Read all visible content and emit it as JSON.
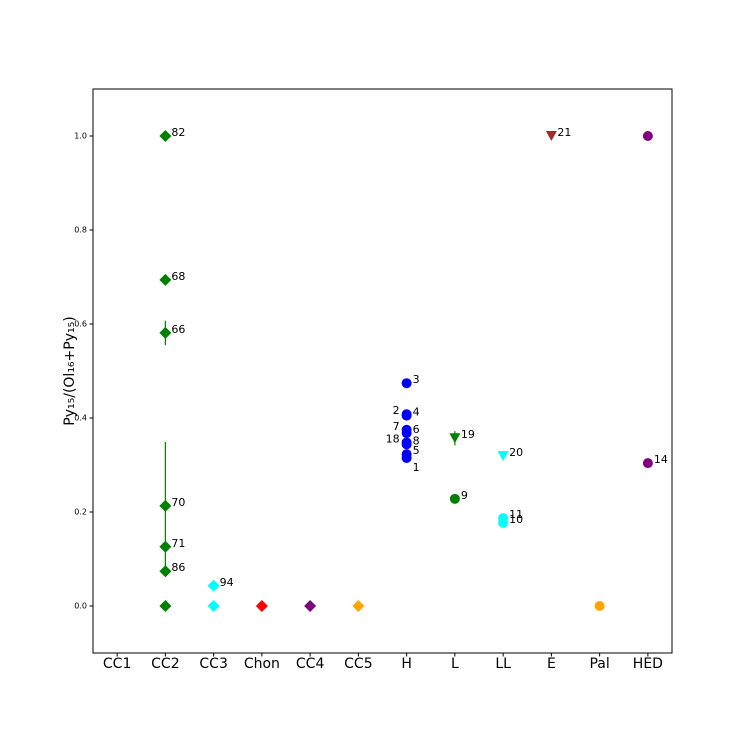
{
  "chart_data": {
    "type": "scatter",
    "ylabel": "Py₁₅/(Ol₁₆+Py₁₅)",
    "categories": [
      "CC1",
      "CC2",
      "CC3",
      "Chon",
      "CC4",
      "CC5",
      "H",
      "L",
      "LL",
      "E",
      "Pal",
      "HED"
    ],
    "ylim": [
      -0.1,
      1.1
    ],
    "yticks": [
      {
        "value": 0,
        "label": "0.0"
      },
      {
        "value": 0.2,
        "label": "0.2"
      },
      {
        "value": 0.4,
        "label": "0.4"
      },
      {
        "value": 0.6,
        "label": "0.6"
      },
      {
        "value": 0.8,
        "label": "0.8"
      },
      {
        "value": 1.0,
        "label": "1.0"
      }
    ],
    "points": [
      {
        "x": "CC2",
        "value": 1.0,
        "label": "82",
        "color": "#008000",
        "marker": "diamond"
      },
      {
        "x": "CC2",
        "value": 0.694,
        "label": "68",
        "color": "#008000",
        "marker": "diamond"
      },
      {
        "x": "CC2",
        "value": 0.581,
        "error": 0.026,
        "label": "66",
        "color": "#008000",
        "marker": "diamond"
      },
      {
        "x": "CC2",
        "value": 0.213,
        "error": 0.136,
        "label": "70",
        "color": "#008000",
        "marker": "diamond"
      },
      {
        "x": "CC2",
        "value": 0.126,
        "label": "71",
        "color": "#008000",
        "marker": "diamond"
      },
      {
        "x": "CC2",
        "value": 0.074,
        "label": "86",
        "color": "#008000",
        "marker": "diamond"
      },
      {
        "x": "CC2",
        "value": 0,
        "color": "#008000",
        "marker": "diamond"
      },
      {
        "x": "CC3",
        "value": 0.043,
        "label": "94",
        "color": "#00ffff",
        "marker": "diamond"
      },
      {
        "x": "CC3",
        "value": 0,
        "color": "#00ffff",
        "marker": "diamond"
      },
      {
        "x": "Chon",
        "value": 0,
        "color": "#ff0000",
        "marker": "diamond"
      },
      {
        "x": "CC4",
        "value": 0,
        "color": "#800080",
        "marker": "diamond"
      },
      {
        "x": "CC5",
        "value": 0,
        "color": "#ffa500",
        "marker": "diamond"
      },
      {
        "x": "H",
        "value": 0.474,
        "label": "3",
        "color": "#0000ff",
        "marker": "circle"
      },
      {
        "x": "H",
        "value": 0.408,
        "label": "2",
        "color": "#0000ff",
        "marker": "circle"
      },
      {
        "x": "H",
        "value": 0.405,
        "label": "4",
        "color": "#0000ff",
        "marker": "circle"
      },
      {
        "x": "H",
        "value": 0.375,
        "label": "7",
        "color": "#0000ff",
        "marker": "circle"
      },
      {
        "x": "H",
        "value": 0.368,
        "label": "6",
        "color": "#0000ff",
        "marker": "circle"
      },
      {
        "x": "H",
        "value": 0.348,
        "label": "18",
        "color": "#0000ff",
        "marker": "circle"
      },
      {
        "x": "H",
        "value": 0.344,
        "label": "8",
        "color": "#0000ff",
        "marker": "circle"
      },
      {
        "x": "H",
        "value": 0.323,
        "label": "5",
        "color": "#0000ff",
        "marker": "circle"
      },
      {
        "x": "H",
        "value": 0.315,
        "label": "1",
        "color": "#0000ff",
        "marker": "circle"
      },
      {
        "x": "L",
        "value": 0.357,
        "error": 0.015,
        "label": "19",
        "color": "#008000",
        "marker": "triangle-down"
      },
      {
        "x": "L",
        "value": 0.228,
        "label": "9",
        "color": "#008000",
        "marker": "circle"
      },
      {
        "x": "LL",
        "value": 0.319,
        "label": "20",
        "color": "#00ffff",
        "marker": "triangle-down"
      },
      {
        "x": "LL",
        "value": 0.187,
        "label": "11",
        "color": "#00ffff",
        "marker": "circle"
      },
      {
        "x": "LL",
        "value": 0.177,
        "label": "10",
        "color": "#00ffff",
        "marker": "circle"
      },
      {
        "x": "E",
        "value": 1.0,
        "label": "21",
        "color": "#a52a2a",
        "marker": "triangle-down"
      },
      {
        "x": "Pal",
        "value": 0,
        "color": "#ffa500",
        "marker": "circle"
      },
      {
        "x": "HED",
        "value": 1.0,
        "error": 0.008,
        "color": "#800080",
        "marker": "circle"
      },
      {
        "x": "HED",
        "value": 0.304,
        "label": "14",
        "color": "#800080",
        "marker": "circle"
      }
    ]
  }
}
